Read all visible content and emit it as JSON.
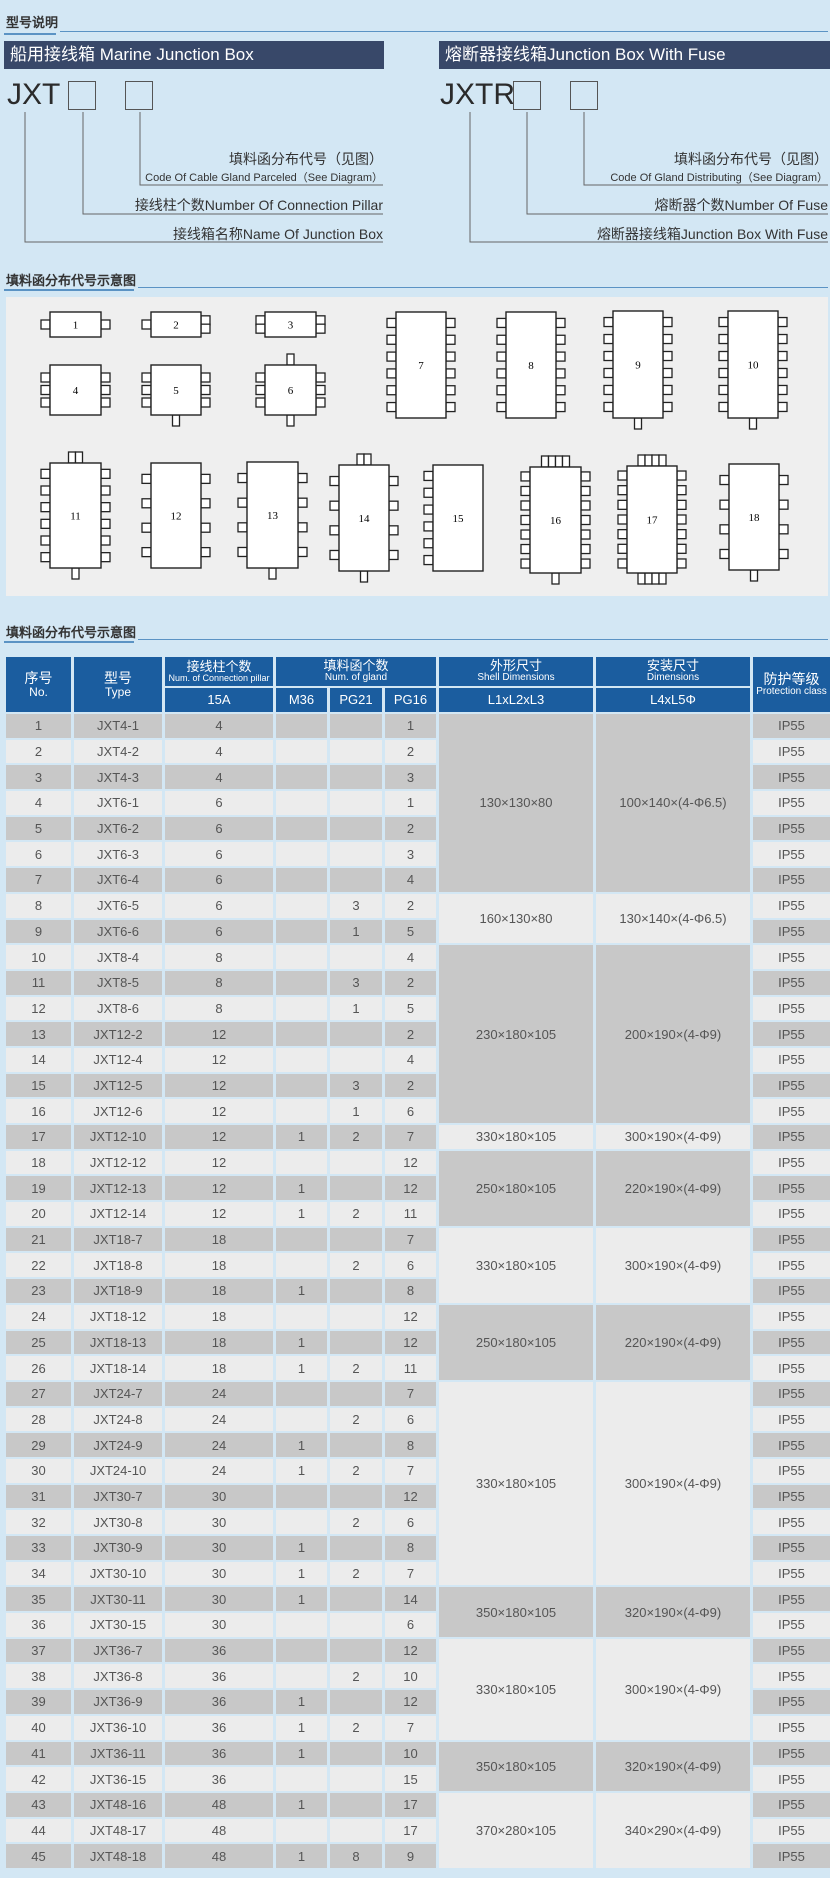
{
  "section1": {
    "title": "型号说明",
    "left": {
      "bar": "船用接线箱 Marine Junction Box",
      "code": "JXT",
      "label1_cn": "填料函分布代号（见图）",
      "label1_en": "Code Of Cable Gland Parceled（See Diagram）",
      "label2": "接线柱个数Number Of Connection Pillar",
      "label3": "接线箱名称Name Of Junction Box"
    },
    "right": {
      "bar": "熔断器接线箱Junction Box With Fuse",
      "code": "JXTR",
      "label1_cn": "填料函分布代号（见图）",
      "label1_en": "Code Of Gland Distributing（See Diagram）",
      "label2": "熔断器个数Number Of Fuse",
      "label3": "熔断器接线箱Junction Box With Fuse"
    }
  },
  "section2": {
    "title": "填料函分布代号示意图",
    "boxes": [
      {
        "n": "1",
        "left": 1,
        "right": 1,
        "top": 0,
        "bottom": 0
      },
      {
        "n": "2",
        "left": 1,
        "right": 2,
        "top": 0,
        "bottom": 0
      },
      {
        "n": "3",
        "left": 2,
        "right": 2,
        "top": 0,
        "bottom": 0
      },
      {
        "n": "4",
        "left": 3,
        "right": 3,
        "top": 0,
        "bottom": 0
      },
      {
        "n": "5",
        "left": 3,
        "right": 3,
        "top": 0,
        "bottom": 1
      },
      {
        "n": "6",
        "left": 3,
        "right": 3,
        "top": 1,
        "bottom": 1
      },
      {
        "n": "7",
        "left": 6,
        "right": 6,
        "top": 0,
        "bottom": 0
      },
      {
        "n": "8",
        "left": 6,
        "right": 6,
        "top": 0,
        "bottom": 0
      },
      {
        "n": "9",
        "left": 6,
        "right": 6,
        "top": 0,
        "bottom": 1
      },
      {
        "n": "10",
        "left": 6,
        "right": 6,
        "top": 0,
        "bottom": 1
      },
      {
        "n": "11",
        "left": 6,
        "right": 6,
        "top": 2,
        "bottom": 1
      },
      {
        "n": "12",
        "left": 4,
        "right": 4,
        "top": 0,
        "bottom": 0
      },
      {
        "n": "13",
        "left": 4,
        "right": 4,
        "top": 0,
        "bottom": 1
      },
      {
        "n": "14",
        "left": 4,
        "right": 4,
        "top": 2,
        "bottom": 1
      },
      {
        "n": "15",
        "left": 6,
        "right": 0,
        "top": 0,
        "bottom": 0
      },
      {
        "n": "16",
        "left": 7,
        "right": 7,
        "top": 4,
        "bottom": 1
      },
      {
        "n": "17",
        "left": 7,
        "right": 7,
        "top": 4,
        "bottom": 4
      },
      {
        "n": "18",
        "left": 4,
        "right": 4,
        "top": 0,
        "bottom": 1
      }
    ]
  },
  "section3": {
    "title": "填料函分布代号示意图",
    "headers": {
      "no_cn": "序号",
      "no_en": "No.",
      "type_cn": "型号",
      "type_en": "Type",
      "pillar_cn": "接线柱个数",
      "pillar_en": "Num. of Connection pillar",
      "gland_cn": "填料函个数",
      "gland_en": "Num. of gland",
      "shell_cn": "外形尺寸",
      "shell_en": "Shell Dimensions",
      "mount_cn": "安装尺寸",
      "mount_en": "Dimensions",
      "prot_cn": "防护等级",
      "prot_en": "Protection class",
      "sub_15a": "15A",
      "sub_m36": "M36",
      "sub_pg21": "PG21",
      "sub_pg16": "PG16",
      "sub_shell": "L1xL2xL3",
      "sub_mount": "L4xL5Φ"
    },
    "rows": [
      [
        "1",
        "JXT4-1",
        "4",
        "",
        "",
        "1",
        "IP55"
      ],
      [
        "2",
        "JXT4-2",
        "4",
        "",
        "",
        "2",
        "IP55"
      ],
      [
        "3",
        "JXT4-3",
        "4",
        "",
        "",
        "3",
        "IP55"
      ],
      [
        "4",
        "JXT6-1",
        "6",
        "",
        "",
        "1",
        "IP55"
      ],
      [
        "5",
        "JXT6-2",
        "6",
        "",
        "",
        "2",
        "IP55"
      ],
      [
        "6",
        "JXT6-3",
        "6",
        "",
        "",
        "3",
        "IP55"
      ],
      [
        "7",
        "JXT6-4",
        "6",
        "",
        "",
        "4",
        "IP55"
      ],
      [
        "8",
        "JXT6-5",
        "6",
        "",
        "3",
        "2",
        "IP55"
      ],
      [
        "9",
        "JXT6-6",
        "6",
        "",
        "1",
        "5",
        "IP55"
      ],
      [
        "10",
        "JXT8-4",
        "8",
        "",
        "",
        "4",
        "IP55"
      ],
      [
        "11",
        "JXT8-5",
        "8",
        "",
        "3",
        "2",
        "IP55"
      ],
      [
        "12",
        "JXT8-6",
        "8",
        "",
        "1",
        "5",
        "IP55"
      ],
      [
        "13",
        "JXT12-2",
        "12",
        "",
        "",
        "2",
        "IP55"
      ],
      [
        "14",
        "JXT12-4",
        "12",
        "",
        "",
        "4",
        "IP55"
      ],
      [
        "15",
        "JXT12-5",
        "12",
        "",
        "3",
        "2",
        "IP55"
      ],
      [
        "16",
        "JXT12-6",
        "12",
        "",
        "1",
        "6",
        "IP55"
      ],
      [
        "17",
        "JXT12-10",
        "12",
        "1",
        "2",
        "7",
        "IP55"
      ],
      [
        "18",
        "JXT12-12",
        "12",
        "",
        "",
        "12",
        "IP55"
      ],
      [
        "19",
        "JXT12-13",
        "12",
        "1",
        "",
        "12",
        "IP55"
      ],
      [
        "20",
        "JXT12-14",
        "12",
        "1",
        "2",
        "11",
        "IP55"
      ],
      [
        "21",
        "JXT18-7",
        "18",
        "",
        "",
        "7",
        "IP55"
      ],
      [
        "22",
        "JXT18-8",
        "18",
        "",
        "2",
        "6",
        "IP55"
      ],
      [
        "23",
        "JXT18-9",
        "18",
        "1",
        "",
        "8",
        "IP55"
      ],
      [
        "24",
        "JXT18-12",
        "18",
        "",
        "",
        "12",
        "IP55"
      ],
      [
        "25",
        "JXT18-13",
        "18",
        "1",
        "",
        "12",
        "IP55"
      ],
      [
        "26",
        "JXT18-14",
        "18",
        "1",
        "2",
        "11",
        "IP55"
      ],
      [
        "27",
        "JXT24-7",
        "24",
        "",
        "",
        "7",
        "IP55"
      ],
      [
        "28",
        "JXT24-8",
        "24",
        "",
        "2",
        "6",
        "IP55"
      ],
      [
        "29",
        "JXT24-9",
        "24",
        "1",
        "",
        "8",
        "IP55"
      ],
      [
        "30",
        "JXT24-10",
        "24",
        "1",
        "2",
        "7",
        "IP55"
      ],
      [
        "31",
        "JXT30-7",
        "30",
        "",
        "",
        "12",
        "IP55"
      ],
      [
        "32",
        "JXT30-8",
        "30",
        "",
        "2",
        "6",
        "IP55"
      ],
      [
        "33",
        "JXT30-9",
        "30",
        "1",
        "",
        "8",
        "IP55"
      ],
      [
        "34",
        "JXT30-10",
        "30",
        "1",
        "2",
        "7",
        "IP55"
      ],
      [
        "35",
        "JXT30-11",
        "30",
        "1",
        "",
        "14",
        "IP55"
      ],
      [
        "36",
        "JXT30-15",
        "30",
        "",
        "",
        "6",
        "IP55"
      ],
      [
        "37",
        "JXT36-7",
        "36",
        "",
        "",
        "12",
        "IP55"
      ],
      [
        "38",
        "JXT36-8",
        "36",
        "",
        "2",
        "10",
        "IP55"
      ],
      [
        "39",
        "JXT36-9",
        "36",
        "1",
        "",
        "12",
        "IP55"
      ],
      [
        "40",
        "JXT36-10",
        "36",
        "1",
        "2",
        "7",
        "IP55"
      ],
      [
        "41",
        "JXT36-11",
        "36",
        "1",
        "",
        "10",
        "IP55"
      ],
      [
        "42",
        "JXT36-15",
        "36",
        "",
        "",
        "15",
        "IP55"
      ],
      [
        "43",
        "JXT48-16",
        "48",
        "1",
        "",
        "17",
        "IP55"
      ],
      [
        "44",
        "JXT48-17",
        "48",
        "",
        "",
        "17",
        "IP55"
      ],
      [
        "45",
        "JXT48-18",
        "48",
        "1",
        "8",
        "9",
        "IP55"
      ]
    ],
    "dimension_groups": [
      {
        "rows": 7,
        "shell": "130×130×80",
        "mount": "100×140×(4-Φ6.5)"
      },
      {
        "rows": 2,
        "shell": "160×130×80",
        "mount": "130×140×(4-Φ6.5)"
      },
      {
        "rows": 7,
        "shell": "230×180×105",
        "mount": "200×190×(4-Φ9)"
      },
      {
        "rows": 1,
        "shell": "330×180×105",
        "mount": "300×190×(4-Φ9)"
      },
      {
        "rows": 3,
        "shell": "250×180×105",
        "mount": "220×190×(4-Φ9)"
      },
      {
        "rows": 3,
        "shell": "330×180×105",
        "mount": "300×190×(4-Φ9)"
      },
      {
        "rows": 3,
        "shell": "250×180×105",
        "mount": "220×190×(4-Φ9)"
      },
      {
        "rows": 8,
        "shell": "330×180×105",
        "mount": "300×190×(4-Φ9)"
      },
      {
        "rows": 2,
        "shell": "350×180×105",
        "mount": "320×190×(4-Φ9)"
      },
      {
        "rows": 4,
        "shell": "330×180×105",
        "mount": "300×190×(4-Φ9)"
      },
      {
        "rows": 2,
        "shell": "350×180×105",
        "mount": "320×190×(4-Φ9)"
      },
      {
        "rows": 3,
        "shell": "370×280×105",
        "mount": "340×290×(4-Φ9)"
      }
    ]
  },
  "colors": {
    "background": "#d3e7f4",
    "header_blue": "#1b5d9f",
    "title_bar": "#384869",
    "row_dark": "#c8c8c8",
    "row_light": "#ececec"
  }
}
